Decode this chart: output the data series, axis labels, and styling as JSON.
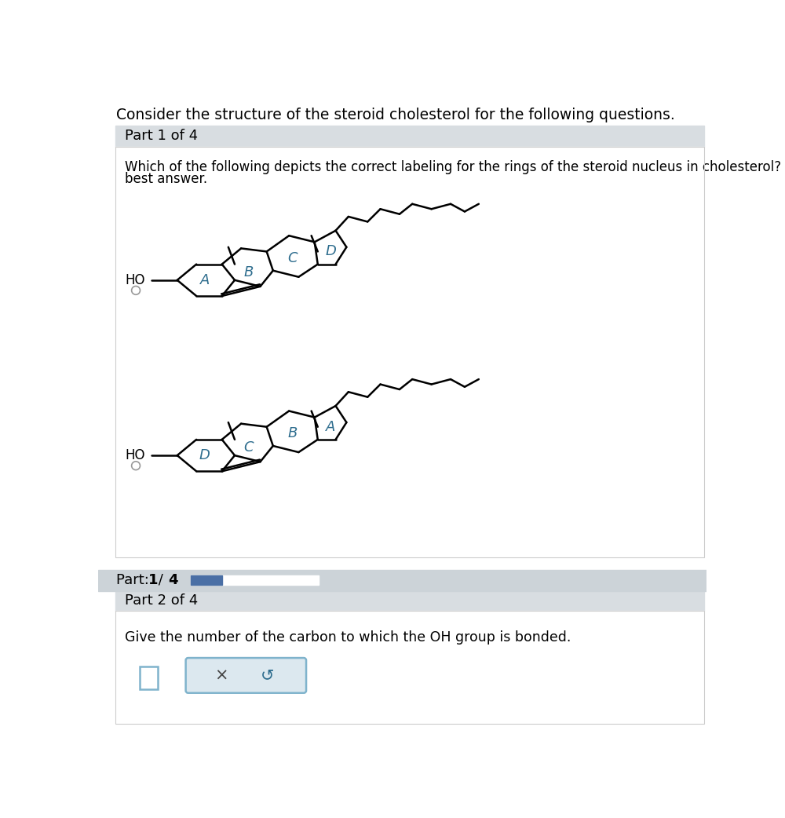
{
  "title": "Consider the structure of the steroid cholesterol for the following questions.",
  "part1_header": "Part 1 of 4",
  "part1_q_line1": "Which of the following depicts the correct labeling for the rings of the steroid nucleus in cholesterol? Sele",
  "part1_q_line2": "best answer.",
  "part_indicator_text": "Part: ",
  "part_num": "1",
  "part_slash": " / ",
  "part_total": "4",
  "part2_header": "Part 2 of 4",
  "part2_question": "Give the number of the carbon to which the OH group is bonded.",
  "bg_color": "#ffffff",
  "section_bg": "#d8dde1",
  "part_indicator_bg": "#ccd3d8",
  "progress_color": "#4a6fa5",
  "progress_bg": "#ffffff",
  "ring_label_color": "#2e6d8e",
  "bond_color": "#000000",
  "input_border": "#7fb3cc",
  "input_bg": "#dce8ef",
  "radio_bg": "#ffffff",
  "radio_border": "#999999",
  "content_border": "#cccccc"
}
